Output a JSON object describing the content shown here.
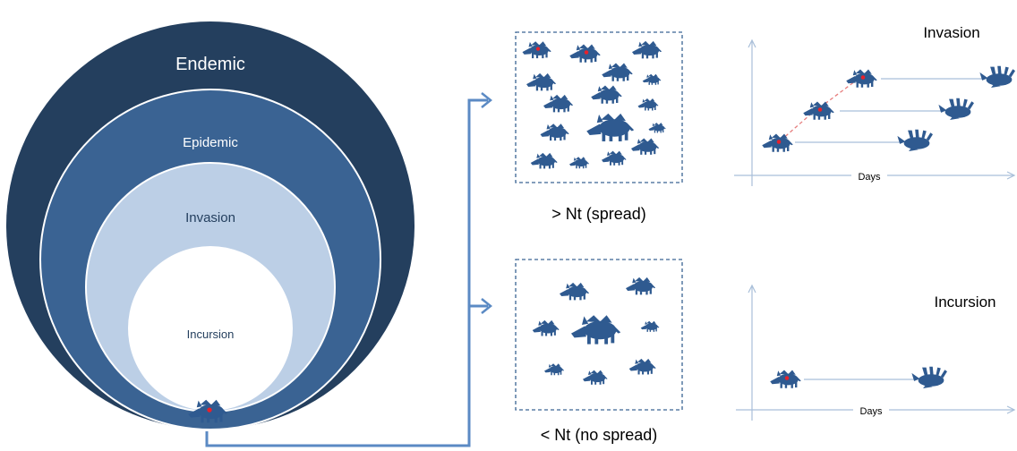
{
  "colors": {
    "endemic": "#243f5e",
    "epidemic": "#3a6393",
    "invasion": "#bccfe6",
    "incursion": "#ffffff",
    "boar": "#2f5a90",
    "infection_dot": "#e8212b",
    "connector": "#5b8ac4",
    "axis": "#a9bfd9",
    "dashed_box": "#3a6393",
    "infection_link": "#e67d7d"
  },
  "icons": {
    "boar": "wild-boar-silhouette",
    "infected_marker": "red-dot",
    "dead_boar": "wild-boar-carcass"
  },
  "circles": {
    "endemic": "Endemic",
    "epidemic": "Epidemic",
    "invasion": "Invasion",
    "incursion": "Incursion"
  },
  "boxes": {
    "upper_label": "> Nt (spread)",
    "lower_label": "< Nt (no  spread)"
  },
  "graphs": {
    "upper_title": "Invasion",
    "upper_xlabel": "Days",
    "lower_title": "Incursion",
    "lower_xlabel": "Days"
  }
}
